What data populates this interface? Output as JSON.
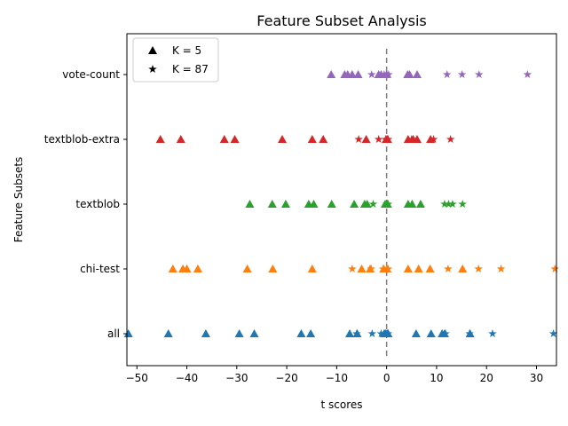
{
  "chart_data": {
    "type": "scatter",
    "title": "Feature Subset Analysis",
    "xlabel": "t scores",
    "ylabel": "Feature Subsets",
    "xlim": [
      -52,
      34
    ],
    "x_ticks": [
      -50,
      -40,
      -30,
      -20,
      -10,
      0,
      10,
      20,
      30
    ],
    "x_tick_labels": [
      "−50",
      "−40",
      "−30",
      "−20",
      "−10",
      "0",
      "10",
      "20",
      "30"
    ],
    "categories": [
      "all",
      "chi-test",
      "textblob",
      "textblob-extra",
      "vote-count"
    ],
    "grid": false,
    "legend_position": "upper left",
    "legend": [
      {
        "marker": "triangle",
        "label": "K = 5"
      },
      {
        "marker": "star",
        "label": "K = 87"
      }
    ],
    "reference_line_x": 0,
    "series": [
      {
        "category": "all",
        "color": "#1f77b4",
        "k5_triangles": [
          -51.7,
          -43.7,
          -36.2,
          -29.5,
          -26.5,
          -17.1,
          -15.2,
          -7.4,
          -5.9,
          -0.5,
          -0.2,
          0.1,
          0.3,
          5.9,
          8.9,
          11.1,
          11.6,
          16.7
        ],
        "k87_stars": [
          -6.0,
          -2.9,
          -1.1,
          -0.3,
          0.1,
          0.3,
          11.8,
          16.6,
          21.2,
          33.4
        ]
      },
      {
        "category": "chi-test",
        "color": "#ff7f0e",
        "k5_triangles": [
          -42.8,
          -40.8,
          -40.0,
          -37.8,
          -27.9,
          -22.8,
          -14.9,
          -5.0,
          -3.3,
          -0.6,
          0.1,
          4.3,
          6.4,
          8.7,
          15.2
        ],
        "k87_stars": [
          -6.9,
          -3.1,
          -0.7,
          0.0,
          0.3,
          12.3,
          18.4,
          22.9,
          33.7
        ]
      },
      {
        "category": "textblob",
        "color": "#2ca02c",
        "k5_triangles": [
          -27.4,
          -22.9,
          -20.2,
          -15.6,
          -14.6,
          -11.0,
          -6.5,
          -4.4,
          -3.9,
          -0.3,
          0.0,
          0.2,
          4.3,
          5.1,
          6.8
        ],
        "k87_stars": [
          -2.7,
          0.0,
          0.3,
          11.6,
          12.4,
          13.2,
          15.2
        ]
      },
      {
        "category": "textblob-extra",
        "color": "#d62728",
        "k5_triangles": [
          -45.3,
          -41.2,
          -32.5,
          -30.4,
          -20.9,
          -14.9,
          -12.7,
          -4.1,
          -0.1,
          0.2,
          4.3,
          5.3,
          6.1,
          8.8
        ],
        "k87_stars": [
          -5.6,
          -1.6,
          -0.2,
          0.3,
          5.0,
          9.4,
          12.8
        ]
      },
      {
        "category": "vote-count",
        "color": "#9467bd",
        "k5_triangles": [
          -11.1,
          -8.4,
          -7.8,
          -6.9,
          -5.7,
          -1.6,
          -1.1,
          0.0,
          4.2,
          4.6,
          6.1
        ],
        "k87_stars": [
          -3.0,
          -0.5,
          0.4,
          12.1,
          15.1,
          18.5,
          28.2
        ]
      }
    ]
  }
}
